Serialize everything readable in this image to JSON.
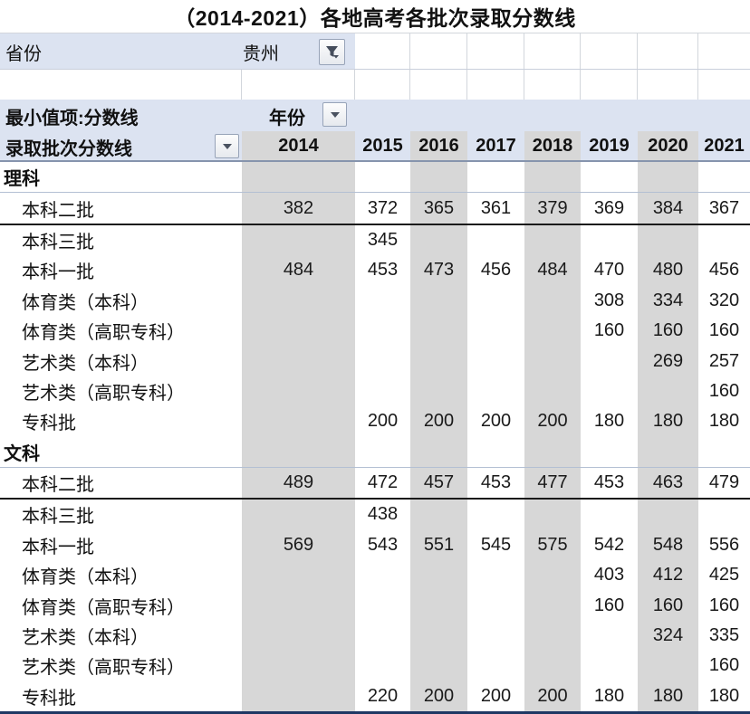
{
  "title": "（2014-2021）各地高考各批次录取分数线",
  "colors": {
    "header_fill": "#dce3f1",
    "band_fill": "#d7d7d7",
    "gridline": "#d2d6dc",
    "years_divider": "#8694ad",
    "section_divider": "#b3bfd3",
    "batch_divider": "#1a1a1a",
    "bottom_border": "#1f3864"
  },
  "icons": {
    "province_filter": "funnel-filter-icon",
    "field_dropdown": "chevron-down-icon"
  },
  "filter_row": {
    "label": "省份",
    "value": "贵州"
  },
  "pivot": {
    "value_field": "最小值项:分数线",
    "column_field": "年份",
    "row_field": "录取批次分数线",
    "years": [
      "2014",
      "2015",
      "2016",
      "2017",
      "2018",
      "2019",
      "2020",
      "2021"
    ]
  },
  "table": {
    "sections": [
      {
        "header": "理科",
        "rows": [
          {
            "label": "本科二批",
            "values": [
              "382",
              "372",
              "365",
              "361",
              "379",
              "369",
              "384",
              "367"
            ]
          },
          {
            "label": "本科三批",
            "values": [
              "",
              "345",
              "",
              "",
              "",
              "",
              "",
              ""
            ]
          },
          {
            "label": "本科一批",
            "values": [
              "484",
              "453",
              "473",
              "456",
              "484",
              "470",
              "480",
              "456"
            ]
          },
          {
            "label": "体育类（本科）",
            "values": [
              "",
              "",
              "",
              "",
              "",
              "308",
              "334",
              "320"
            ]
          },
          {
            "label": "体育类（高职专科）",
            "values": [
              "",
              "",
              "",
              "",
              "",
              "160",
              "160",
              "160"
            ]
          },
          {
            "label": "艺术类（本科）",
            "values": [
              "",
              "",
              "",
              "",
              "",
              "",
              "269",
              "257"
            ]
          },
          {
            "label": "艺术类（高职专科）",
            "values": [
              "",
              "",
              "",
              "",
              "",
              "",
              "",
              "160"
            ]
          },
          {
            "label": "专科批",
            "values": [
              "",
              "200",
              "200",
              "200",
              "200",
              "180",
              "180",
              "180"
            ]
          }
        ]
      },
      {
        "header": "文科",
        "rows": [
          {
            "label": "本科二批",
            "values": [
              "489",
              "472",
              "457",
              "453",
              "477",
              "453",
              "463",
              "479"
            ]
          },
          {
            "label": "本科三批",
            "values": [
              "",
              "438",
              "",
              "",
              "",
              "",
              "",
              ""
            ]
          },
          {
            "label": "本科一批",
            "values": [
              "569",
              "543",
              "551",
              "545",
              "575",
              "542",
              "548",
              "556"
            ]
          },
          {
            "label": "体育类（本科）",
            "values": [
              "",
              "",
              "",
              "",
              "",
              "403",
              "412",
              "425"
            ]
          },
          {
            "label": "体育类（高职专科）",
            "values": [
              "",
              "",
              "",
              "",
              "",
              "160",
              "160",
              "160"
            ]
          },
          {
            "label": "艺术类（本科）",
            "values": [
              "",
              "",
              "",
              "",
              "",
              "",
              "324",
              "335"
            ]
          },
          {
            "label": "艺术类（高职专科）",
            "values": [
              "",
              "",
              "",
              "",
              "",
              "",
              "",
              "160"
            ]
          },
          {
            "label": "专科批",
            "values": [
              "",
              "220",
              "200",
              "200",
              "200",
              "180",
              "180",
              "180"
            ]
          }
        ]
      }
    ]
  }
}
